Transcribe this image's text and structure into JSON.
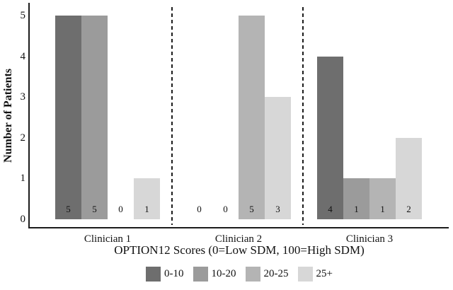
{
  "figure": {
    "background": "#ffffff",
    "axis_color": "#1c1c1c",
    "text_color": "#111111"
  },
  "chart_data": {
    "type": "bar",
    "grouped": true,
    "title": "",
    "xlabel": "OPTION12 Scores (0=Low SDM, 100=High SDM)",
    "ylabel": "Number of Patients",
    "categories": [
      "Clinician 1",
      "Clinician 2",
      "Clinician 3"
    ],
    "series": [
      {
        "name": "0-10",
        "color": "#6e6e6e",
        "values": [
          5,
          0,
          4
        ]
      },
      {
        "name": "10-20",
        "color": "#9b9b9b",
        "values": [
          5,
          0,
          1
        ]
      },
      {
        "name": "20-25",
        "color": "#b4b4b4",
        "values": [
          0,
          5,
          1
        ]
      },
      {
        "name": "25+",
        "color": "#d7d7d7",
        "values": [
          1,
          3,
          2
        ]
      }
    ],
    "yticks": [
      0,
      1,
      2,
      3,
      4,
      5
    ],
    "ylim": [
      0,
      5
    ],
    "bar_value_labels": true,
    "group_separator_style": "dashed",
    "legend_position": "bottom",
    "grid": false
  }
}
